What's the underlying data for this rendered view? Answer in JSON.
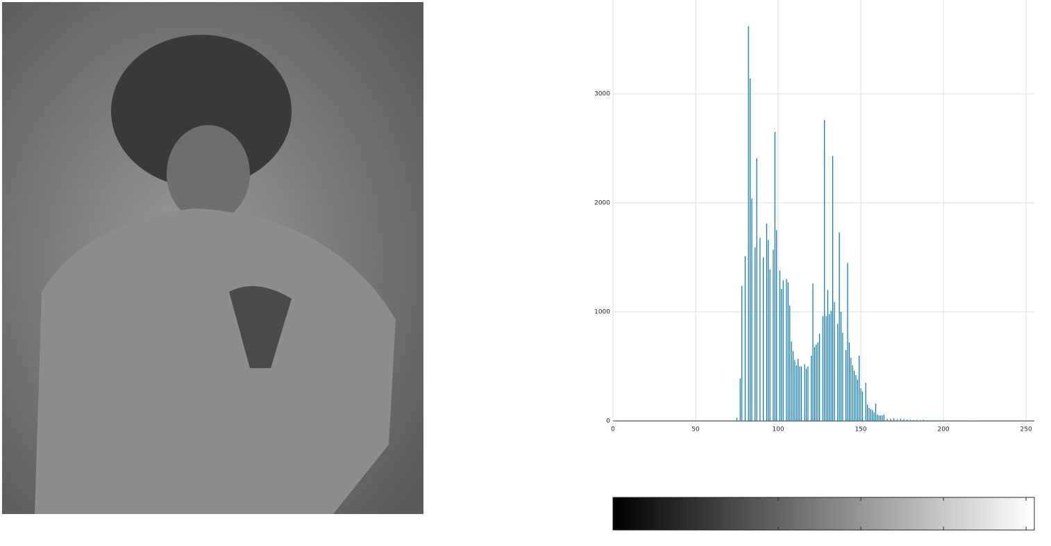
{
  "chart_data": {
    "type": "stem",
    "x": [
      0,
      1,
      2,
      3,
      4,
      5,
      6,
      7,
      8,
      9,
      10,
      11,
      12,
      13,
      14,
      15,
      16,
      17,
      18,
      19,
      20,
      21,
      22,
      23,
      24,
      25,
      26,
      27,
      28,
      29,
      30,
      31,
      32,
      33,
      34,
      35,
      36,
      37,
      38,
      39,
      40,
      41,
      42,
      43,
      44,
      45,
      46,
      47,
      48,
      49,
      50,
      51,
      52,
      53,
      54,
      55,
      56,
      57,
      58,
      59,
      60,
      61,
      62,
      63,
      64,
      65,
      66,
      67,
      68,
      69,
      70,
      71,
      72,
      73,
      74,
      75,
      76,
      77,
      78,
      79,
      80,
      81,
      82,
      83,
      84,
      85,
      86,
      87,
      88,
      89,
      90,
      91,
      92,
      93,
      94,
      95,
      96,
      97,
      98,
      99,
      100,
      101,
      102,
      103,
      104,
      105,
      106,
      107,
      108,
      109,
      110,
      111,
      112,
      113,
      114,
      115,
      116,
      117,
      118,
      119,
      120,
      121,
      122,
      123,
      124,
      125,
      126,
      127,
      128,
      129,
      130,
      131,
      132,
      133,
      134,
      135,
      136,
      137,
      138,
      139,
      140,
      141,
      142,
      143,
      144,
      145,
      146,
      147,
      148,
      149,
      150,
      151,
      152,
      153,
      154,
      155,
      156,
      157,
      158,
      159,
      160,
      161,
      162,
      163,
      164,
      165,
      166,
      167,
      168,
      169,
      170,
      171,
      172,
      173,
      174,
      175,
      176,
      177,
      178,
      179,
      180,
      181,
      182,
      183,
      184,
      185,
      186,
      187,
      188,
      189,
      190,
      191,
      192,
      193,
      194,
      195,
      196,
      197,
      198,
      199,
      200,
      201,
      202,
      203,
      204,
      205,
      206,
      207,
      208,
      209,
      210,
      211,
      212,
      213,
      214,
      215,
      216,
      217,
      218,
      219,
      220,
      221,
      222,
      223,
      224,
      225,
      226,
      227,
      228,
      229,
      230,
      231,
      232,
      233,
      234,
      235,
      236,
      237,
      238,
      239,
      240,
      241,
      242,
      243,
      244,
      245,
      246,
      247,
      248,
      249,
      250,
      251,
      252,
      253,
      254,
      255
    ],
    "values": [
      0,
      0,
      0,
      0,
      0,
      0,
      0,
      0,
      0,
      0,
      0,
      0,
      0,
      0,
      0,
      0,
      0,
      0,
      0,
      0,
      0,
      0,
      0,
      0,
      0,
      0,
      0,
      0,
      0,
      0,
      0,
      0,
      0,
      0,
      0,
      0,
      0,
      0,
      0,
      0,
      0,
      0,
      0,
      0,
      0,
      0,
      0,
      0,
      0,
      0,
      0,
      0,
      0,
      0,
      0,
      0,
      0,
      0,
      0,
      0,
      0,
      0,
      0,
      0,
      0,
      0,
      0,
      0,
      0,
      0,
      0,
      0,
      0,
      0,
      0,
      30,
      0,
      390,
      1240,
      0,
      1510,
      0,
      3620,
      3140,
      2040,
      0,
      1590,
      2410,
      0,
      1680,
      0,
      1500,
      0,
      1810,
      1660,
      1390,
      0,
      1570,
      2650,
      1750,
      0,
      1380,
      1210,
      1290,
      0,
      1300,
      1270,
      1060,
      730,
      640,
      560,
      510,
      570,
      500,
      500,
      0,
      520,
      480,
      500,
      0,
      600,
      1260,
      680,
      700,
      720,
      800,
      0,
      960,
      2760,
      960,
      1200,
      980,
      1010,
      2430,
      1090,
      0,
      890,
      1730,
      1000,
      810,
      0,
      650,
      1450,
      720,
      580,
      510,
      460,
      420,
      380,
      600,
      300,
      270,
      0,
      350,
      150,
      120,
      110,
      100,
      80,
      160,
      60,
      50,
      50,
      50,
      60,
      0,
      20,
      0,
      20,
      0,
      25,
      0,
      15,
      0,
      20,
      0,
      15,
      0,
      12,
      0,
      10,
      0,
      8,
      0,
      10,
      0,
      8,
      0,
      10,
      0,
      6,
      0,
      5,
      0,
      0,
      0,
      5,
      0,
      0,
      0,
      5,
      0,
      0,
      0,
      0,
      5,
      0,
      0,
      0,
      0,
      4,
      0,
      0,
      0,
      0,
      3,
      0,
      0,
      0,
      0,
      3,
      0,
      0,
      0,
      0,
      0,
      0,
      0,
      0,
      0,
      0,
      0,
      0,
      0,
      0,
      0,
      0,
      0,
      0,
      0,
      0,
      0,
      0,
      0,
      0,
      0,
      0,
      0,
      0,
      0,
      0,
      0,
      0,
      0,
      0,
      0
    ],
    "color": "#0072bd",
    "xlim": [
      0,
      255
    ],
    "xticks": [
      0,
      50,
      100,
      150,
      200,
      250
    ],
    "ylim": [
      0,
      3860
    ],
    "yticks": [
      0,
      1000,
      2000,
      3000
    ],
    "grid": true
  }
}
